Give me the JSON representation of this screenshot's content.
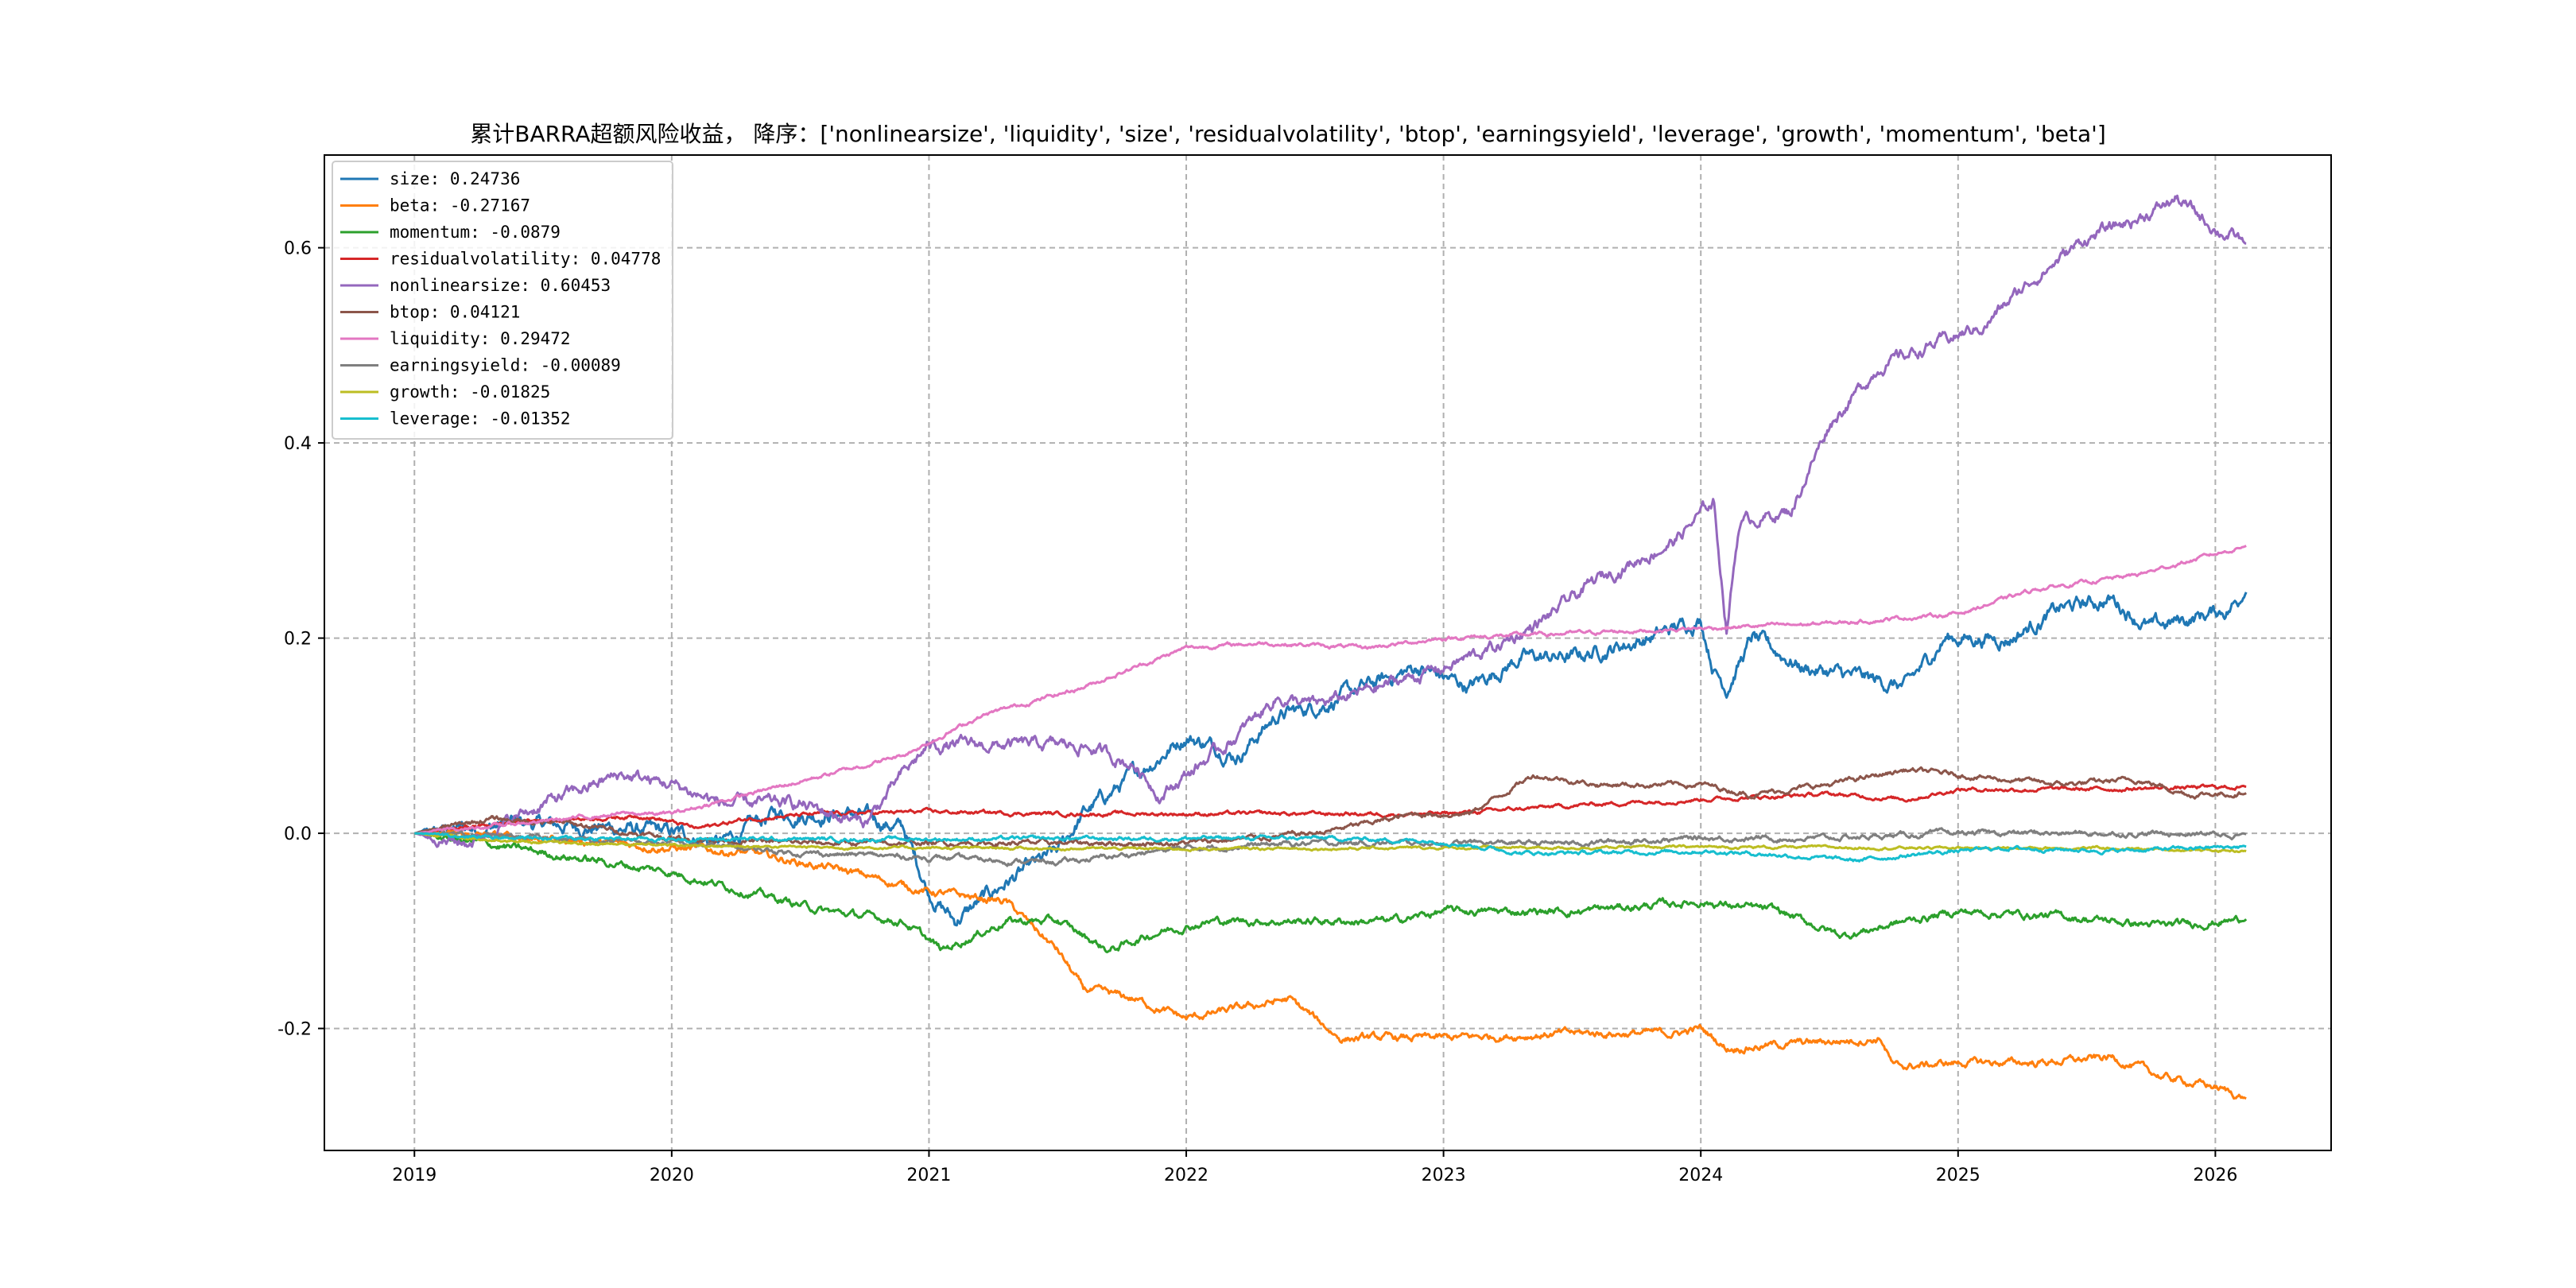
{
  "chart_data": {
    "type": "line",
    "title": "累计BARRA超额风险收益， 降序：['nonlinearsize', 'liquidity', 'size', 'residualvolatility', 'btop', 'earningsyield', 'leverage', 'growth', 'momentum', 'beta']",
    "xlabel": "",
    "ylabel": "",
    "x_ticks": [
      "2019",
      "2020",
      "2021",
      "2022",
      "2023",
      "2024",
      "2025",
      "2026"
    ],
    "y_ticks": [
      "-0.2",
      "0.0",
      "0.2",
      "0.4",
      "0.6"
    ],
    "xlim": [
      2018.65,
      2026.45
    ],
    "ylim": [
      -0.325,
      0.695
    ],
    "grid": true,
    "legend_position": "top-left",
    "series": [
      {
        "name": "size",
        "legend": "size: 0.24736",
        "color": "#1f77b4",
        "vol": 0.006,
        "points": [
          [
            2019.0,
            0
          ],
          [
            2019.4,
            0.01
          ],
          [
            2019.8,
            0.005
          ],
          [
            2020.0,
            0.0
          ],
          [
            2020.2,
            -0.01
          ],
          [
            2020.4,
            0.02
          ],
          [
            2020.7,
            0.02
          ],
          [
            2020.9,
            0.005
          ],
          [
            2021.0,
            -0.06
          ],
          [
            2021.1,
            -0.09
          ],
          [
            2021.3,
            -0.05
          ],
          [
            2021.5,
            -0.02
          ],
          [
            2021.6,
            0.02
          ],
          [
            2021.8,
            0.06
          ],
          [
            2022.0,
            0.1
          ],
          [
            2022.2,
            0.08
          ],
          [
            2022.35,
            0.12
          ],
          [
            2022.5,
            0.13
          ],
          [
            2022.7,
            0.15
          ],
          [
            2022.9,
            0.17
          ],
          [
            2023.1,
            0.15
          ],
          [
            2023.3,
            0.18
          ],
          [
            2023.5,
            0.18
          ],
          [
            2023.8,
            0.2
          ],
          [
            2024.0,
            0.22
          ],
          [
            2024.05,
            0.17
          ],
          [
            2024.1,
            0.15
          ],
          [
            2024.2,
            0.2
          ],
          [
            2024.4,
            0.17
          ],
          [
            2024.6,
            0.16
          ],
          [
            2024.8,
            0.15
          ],
          [
            2024.95,
            0.2
          ],
          [
            2025.2,
            0.2
          ],
          [
            2025.4,
            0.23
          ],
          [
            2025.6,
            0.24
          ],
          [
            2025.75,
            0.21
          ],
          [
            2025.9,
            0.22
          ],
          [
            2026.05,
            0.23
          ],
          [
            2026.12,
            0.24736
          ]
        ]
      },
      {
        "name": "beta",
        "legend": "beta: -0.27167",
        "color": "#ff7f0e",
        "vol": 0.003,
        "points": [
          [
            2019.0,
            0
          ],
          [
            2019.5,
            -0.005
          ],
          [
            2020.0,
            -0.015
          ],
          [
            2020.3,
            -0.02
          ],
          [
            2020.7,
            -0.04
          ],
          [
            2021.0,
            -0.06
          ],
          [
            2021.3,
            -0.07
          ],
          [
            2021.5,
            -0.12
          ],
          [
            2021.6,
            -0.16
          ],
          [
            2021.8,
            -0.17
          ],
          [
            2022.0,
            -0.19
          ],
          [
            2022.2,
            -0.18
          ],
          [
            2022.4,
            -0.17
          ],
          [
            2022.6,
            -0.21
          ],
          [
            2022.8,
            -0.21
          ],
          [
            2023.0,
            -0.21
          ],
          [
            2023.5,
            -0.205
          ],
          [
            2023.9,
            -0.205
          ],
          [
            2024.0,
            -0.2
          ],
          [
            2024.1,
            -0.22
          ],
          [
            2024.4,
            -0.215
          ],
          [
            2024.7,
            -0.21
          ],
          [
            2024.75,
            -0.24
          ],
          [
            2025.0,
            -0.235
          ],
          [
            2025.3,
            -0.235
          ],
          [
            2025.6,
            -0.23
          ],
          [
            2025.8,
            -0.25
          ],
          [
            2026.0,
            -0.26
          ],
          [
            2026.12,
            -0.27167
          ]
        ]
      },
      {
        "name": "momentum",
        "legend": "momentum: -0.0879",
        "color": "#2ca02c",
        "vol": 0.003,
        "points": [
          [
            2019.0,
            0
          ],
          [
            2019.5,
            -0.02
          ],
          [
            2020.0,
            -0.04
          ],
          [
            2020.3,
            -0.06
          ],
          [
            2020.6,
            -0.08
          ],
          [
            2020.9,
            -0.09
          ],
          [
            2021.05,
            -0.12
          ],
          [
            2021.3,
            -0.09
          ],
          [
            2021.5,
            -0.09
          ],
          [
            2021.7,
            -0.12
          ],
          [
            2021.9,
            -0.1
          ],
          [
            2022.1,
            -0.09
          ],
          [
            2022.5,
            -0.09
          ],
          [
            2022.8,
            -0.09
          ],
          [
            2023.0,
            -0.08
          ],
          [
            2023.5,
            -0.08
          ],
          [
            2024.0,
            -0.07
          ],
          [
            2024.3,
            -0.08
          ],
          [
            2024.55,
            -0.105
          ],
          [
            2024.8,
            -0.09
          ],
          [
            2025.0,
            -0.08
          ],
          [
            2025.4,
            -0.085
          ],
          [
            2025.8,
            -0.095
          ],
          [
            2026.12,
            -0.0879
          ]
        ]
      },
      {
        "name": "residualvolatility",
        "legend": "residualvolatility: 0.04778",
        "color": "#d62728",
        "vol": 0.0015,
        "points": [
          [
            2019.0,
            0
          ],
          [
            2019.4,
            0.012
          ],
          [
            2019.9,
            0.018
          ],
          [
            2020.1,
            0.005
          ],
          [
            2020.3,
            0.015
          ],
          [
            2020.6,
            0.02
          ],
          [
            2021.0,
            0.022
          ],
          [
            2021.5,
            0.02
          ],
          [
            2022.0,
            0.02
          ],
          [
            2022.5,
            0.02
          ],
          [
            2023.0,
            0.02
          ],
          [
            2023.3,
            0.025
          ],
          [
            2023.6,
            0.03
          ],
          [
            2024.0,
            0.035
          ],
          [
            2024.5,
            0.04
          ],
          [
            2024.8,
            0.035
          ],
          [
            2025.0,
            0.045
          ],
          [
            2025.5,
            0.045
          ],
          [
            2026.12,
            0.04778
          ]
        ]
      },
      {
        "name": "nonlinearsize",
        "legend": "nonlinearsize: 0.60453",
        "color": "#9467bd",
        "vol": 0.005,
        "points": [
          [
            2019.0,
            0
          ],
          [
            2019.2,
            -0.01
          ],
          [
            2019.5,
            0.03
          ],
          [
            2019.8,
            0.06
          ],
          [
            2020.0,
            0.05
          ],
          [
            2020.2,
            0.03
          ],
          [
            2020.5,
            0.03
          ],
          [
            2020.75,
            0.01
          ],
          [
            2020.9,
            0.06
          ],
          [
            2021.0,
            0.09
          ],
          [
            2021.3,
            0.09
          ],
          [
            2021.6,
            0.09
          ],
          [
            2021.8,
            0.07
          ],
          [
            2021.9,
            0.04
          ],
          [
            2022.0,
            0.06
          ],
          [
            2022.2,
            0.1
          ],
          [
            2022.35,
            0.14
          ],
          [
            2022.5,
            0.13
          ],
          [
            2022.75,
            0.15
          ],
          [
            2023.0,
            0.17
          ],
          [
            2023.2,
            0.19
          ],
          [
            2023.4,
            0.22
          ],
          [
            2023.6,
            0.26
          ],
          [
            2023.9,
            0.3
          ],
          [
            2024.05,
            0.34
          ],
          [
            2024.1,
            0.21
          ],
          [
            2024.15,
            0.32
          ],
          [
            2024.35,
            0.33
          ],
          [
            2024.5,
            0.42
          ],
          [
            2024.7,
            0.48
          ],
          [
            2024.9,
            0.5
          ],
          [
            2025.1,
            0.52
          ],
          [
            2025.3,
            0.57
          ],
          [
            2025.5,
            0.61
          ],
          [
            2025.7,
            0.63
          ],
          [
            2025.85,
            0.65
          ],
          [
            2026.0,
            0.62
          ],
          [
            2026.12,
            0.60453
          ]
        ]
      },
      {
        "name": "btop",
        "legend": "btop: 0.04121",
        "color": "#8c564b",
        "vol": 0.002,
        "points": [
          [
            2019.0,
            0
          ],
          [
            2019.3,
            0.015
          ],
          [
            2019.6,
            0.01
          ],
          [
            2020.0,
            -0.005
          ],
          [
            2020.5,
            -0.01
          ],
          [
            2021.0,
            -0.01
          ],
          [
            2021.5,
            -0.01
          ],
          [
            2022.0,
            -0.01
          ],
          [
            2022.5,
            0.0
          ],
          [
            2022.9,
            0.02
          ],
          [
            2023.1,
            0.02
          ],
          [
            2023.35,
            0.06
          ],
          [
            2023.6,
            0.05
          ],
          [
            2024.0,
            0.05
          ],
          [
            2024.2,
            0.04
          ],
          [
            2024.5,
            0.05
          ],
          [
            2024.8,
            0.065
          ],
          [
            2025.0,
            0.06
          ],
          [
            2025.4,
            0.05
          ],
          [
            2025.7,
            0.055
          ],
          [
            2025.9,
            0.04
          ],
          [
            2026.12,
            0.04121
          ]
        ]
      },
      {
        "name": "liquidity",
        "legend": "liquidity: 0.29472",
        "color": "#e377c2",
        "vol": 0.0015,
        "points": [
          [
            2019.0,
            0
          ],
          [
            2019.4,
            0.01
          ],
          [
            2019.8,
            0.02
          ],
          [
            2020.0,
            0.02
          ],
          [
            2020.3,
            0.04
          ],
          [
            2020.6,
            0.06
          ],
          [
            2020.9,
            0.08
          ],
          [
            2021.2,
            0.12
          ],
          [
            2021.6,
            0.15
          ],
          [
            2022.0,
            0.19
          ],
          [
            2022.3,
            0.195
          ],
          [
            2022.7,
            0.19
          ],
          [
            2023.0,
            0.2
          ],
          [
            2023.5,
            0.205
          ],
          [
            2024.0,
            0.21
          ],
          [
            2024.5,
            0.215
          ],
          [
            2025.0,
            0.225
          ],
          [
            2025.3,
            0.25
          ],
          [
            2025.7,
            0.265
          ],
          [
            2026.12,
            0.29472
          ]
        ]
      },
      {
        "name": "earningsyield",
        "legend": "earningsyield: -0.00089",
        "color": "#7f7f7f",
        "vol": 0.002,
        "points": [
          [
            2019.0,
            0
          ],
          [
            2019.5,
            -0.005
          ],
          [
            2020.0,
            -0.01
          ],
          [
            2020.5,
            -0.02
          ],
          [
            2021.0,
            -0.025
          ],
          [
            2021.5,
            -0.03
          ],
          [
            2022.0,
            -0.015
          ],
          [
            2022.5,
            -0.01
          ],
          [
            2023.0,
            -0.01
          ],
          [
            2023.5,
            -0.01
          ],
          [
            2024.0,
            -0.005
          ],
          [
            2024.5,
            -0.005
          ],
          [
            2025.0,
            0.0
          ],
          [
            2025.5,
            0.0
          ],
          [
            2026.12,
            -0.00089
          ]
        ]
      },
      {
        "name": "growth",
        "legend": "growth: -0.01825",
        "color": "#bcbd22",
        "vol": 0.001,
        "points": [
          [
            2019.0,
            0
          ],
          [
            2019.5,
            -0.01
          ],
          [
            2020.0,
            -0.012
          ],
          [
            2020.5,
            -0.014
          ],
          [
            2021.0,
            -0.015
          ],
          [
            2022.0,
            -0.016
          ],
          [
            2023.0,
            -0.015
          ],
          [
            2024.0,
            -0.014
          ],
          [
            2025.0,
            -0.015
          ],
          [
            2025.5,
            -0.015
          ],
          [
            2026.12,
            -0.01825
          ]
        ]
      },
      {
        "name": "leverage",
        "legend": "leverage: -0.01352",
        "color": "#17becf",
        "vol": 0.0015,
        "points": [
          [
            2019.0,
            0
          ],
          [
            2019.5,
            -0.005
          ],
          [
            2020.0,
            -0.006
          ],
          [
            2021.0,
            -0.006
          ],
          [
            2022.0,
            -0.005
          ],
          [
            2022.5,
            -0.005
          ],
          [
            2023.0,
            -0.008
          ],
          [
            2023.3,
            -0.02
          ],
          [
            2023.6,
            -0.02
          ],
          [
            2024.0,
            -0.018
          ],
          [
            2024.3,
            -0.022
          ],
          [
            2024.6,
            -0.028
          ],
          [
            2024.9,
            -0.02
          ],
          [
            2025.2,
            -0.015
          ],
          [
            2025.6,
            -0.018
          ],
          [
            2026.12,
            -0.01352
          ]
        ]
      }
    ]
  }
}
